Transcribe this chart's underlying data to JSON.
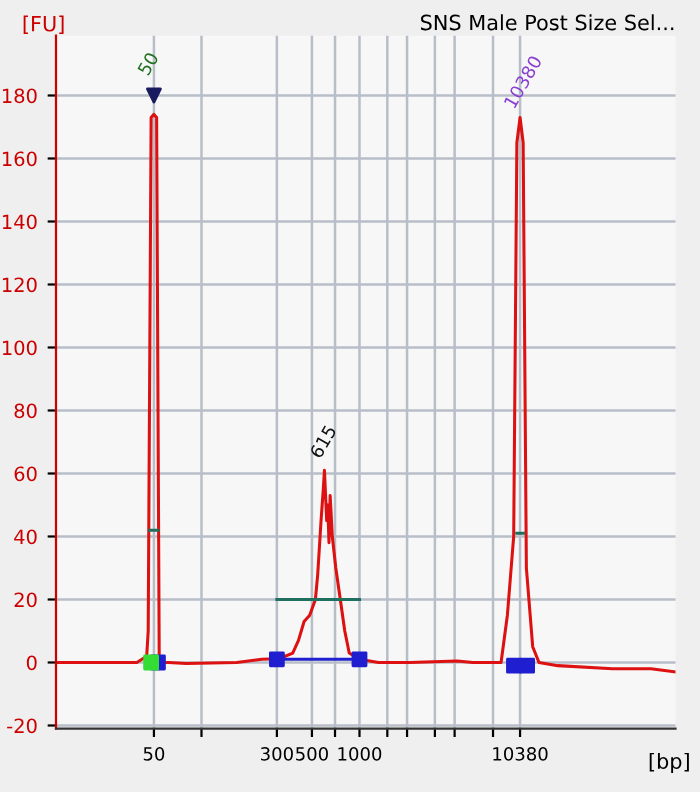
{
  "chart_data": {
    "type": "line",
    "title": "SNS Male Post Size Sel...",
    "ylabel": "[FU]",
    "xlabel": "[bp]",
    "xlim": [
      12,
      100000
    ],
    "log": "x",
    "ylim": [
      -21,
      199
    ],
    "xticks": [
      50,
      {
        "value": 100,
        "label": null
      },
      300,
      500,
      {
        "value": 700,
        "label": null
      },
      1000,
      {
        "value": 1500,
        "label": null
      },
      {
        "value": 2000,
        "label": null
      },
      {
        "value": 3000,
        "label": null
      },
      {
        "value": 4000,
        "label": null
      },
      {
        "value": 7000,
        "label": null
      },
      10380
    ],
    "yticks": [
      -20,
      0,
      20,
      40,
      60,
      80,
      100,
      120,
      140,
      160,
      180
    ],
    "grid": true,
    "legend": false,
    "series": [
      {
        "color": "#dd1111",
        "x": [
          12,
          39,
          45,
          46,
          48,
          50,
          52,
          54,
          56,
          62,
          80,
          167,
          241,
          300,
          321,
          378,
          411,
          446,
          484,
          526,
          544,
          571,
          590,
          600,
          620,
          630,
          641,
          652,
          673,
          708,
          756,
          807,
          861,
          1000,
          1318,
          2084,
          4150,
          5215,
          7870,
          8630,
          9460,
          9910,
          10380,
          10860,
          11380,
          12480,
          13680,
          18000,
          40000,
          70000,
          100000
        ],
        "values": [
          0,
          0,
          2,
          10,
          173,
          174,
          173,
          2,
          0,
          0,
          -0.3,
          0,
          1,
          1.2,
          1.5,
          3,
          7,
          13,
          15,
          20,
          28,
          45,
          55,
          61,
          45,
          50,
          38,
          53,
          40,
          30,
          20,
          10,
          3,
          1,
          0,
          0,
          0.5,
          0,
          0,
          15,
          40,
          165,
          173,
          165,
          30,
          5,
          0,
          -1,
          -2,
          -2,
          -3
        ]
      },
      {
        "type": "line",
        "color": "#1f1fd0",
        "x": [
          300,
          1000
        ],
        "values": [
          1,
          1
        ]
      },
      {
        "type": "line",
        "color": "#1f6f5f",
        "x": [
          300,
          1000
        ],
        "values": [
          20,
          20
        ]
      },
      {
        "type": "line",
        "color": "#1f6f5f",
        "x": [
          47,
          53
        ],
        "values": [
          42,
          42
        ]
      },
      {
        "type": "line",
        "color": "#1f6f5f",
        "x": [
          9900,
          10900
        ],
        "values": [
          41,
          41
        ]
      },
      {
        "type": "scatter",
        "marker": "square",
        "color": "#1f1fd0",
        "x": [
          53,
          300,
          1000,
          9500,
          11500
        ],
        "values": [
          0,
          1,
          1,
          -1,
          -1
        ]
      },
      {
        "type": "scatter",
        "marker": "square",
        "color": "#33dd33",
        "x": [
          48
        ],
        "values": [
          0
        ]
      },
      {
        "type": "scatter",
        "marker": "triangle",
        "color": "#1a1a60",
        "x": [
          50
        ],
        "values": [
          180
        ]
      }
    ],
    "annotations": [
      {
        "text": "50",
        "x": 50,
        "y": 180
      },
      {
        "text": "615",
        "x": 615,
        "y": 62
      },
      {
        "text": "10380",
        "x": 10380,
        "y": 173
      }
    ]
  }
}
